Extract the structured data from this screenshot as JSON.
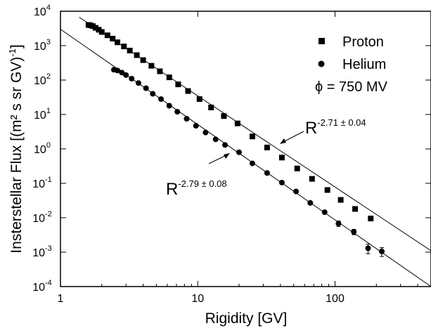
{
  "chart_data": {
    "type": "scatter",
    "xlabel": "Rigidity  [GV]",
    "ylabel": "Insterstellar Flux [(m² s sr GV)",
    "ylabel_sup": "-1",
    "ylabel_end": "]",
    "xscale": "log",
    "yscale": "log",
    "xlim": [
      1,
      500
    ],
    "ylim": [
      0.0001,
      10000
    ],
    "x_ticks": [
      {
        "value": 1,
        "label": "1"
      },
      {
        "value": 10,
        "label": "10"
      },
      {
        "value": 100,
        "label": "100"
      }
    ],
    "y_ticks": [
      {
        "value": 0.0001,
        "base": "10",
        "exp": "-4"
      },
      {
        "value": 0.001,
        "base": "10",
        "exp": "-3"
      },
      {
        "value": 0.01,
        "base": "10",
        "exp": "-2"
      },
      {
        "value": 0.1,
        "base": "10",
        "exp": "-1"
      },
      {
        "value": 1,
        "base": "10",
        "exp": "0"
      },
      {
        "value": 10,
        "base": "10",
        "exp": "1"
      },
      {
        "value": 100,
        "base": "10",
        "exp": "2"
      },
      {
        "value": 1000,
        "base": "10",
        "exp": "3"
      },
      {
        "value": 10000,
        "base": "10",
        "exp": "4"
      }
    ],
    "legend": {
      "position": "top-right",
      "entries": [
        "Proton",
        "Helium"
      ],
      "note": "ϕ = 750 MV"
    },
    "series": [
      {
        "name": "Proton",
        "marker": "square",
        "points": [
          {
            "x": 1.6,
            "y": 4000
          },
          {
            "x": 1.65,
            "y": 3900
          },
          {
            "x": 1.72,
            "y": 3700
          },
          {
            "x": 1.8,
            "y": 3300
          },
          {
            "x": 1.9,
            "y": 2900
          },
          {
            "x": 2.0,
            "y": 2500
          },
          {
            "x": 2.2,
            "y": 2000
          },
          {
            "x": 2.4,
            "y": 1600
          },
          {
            "x": 2.6,
            "y": 1250
          },
          {
            "x": 2.9,
            "y": 950
          },
          {
            "x": 3.2,
            "y": 720
          },
          {
            "x": 3.6,
            "y": 530
          },
          {
            "x": 4.0,
            "y": 380
          },
          {
            "x": 4.6,
            "y": 260
          },
          {
            "x": 5.3,
            "y": 180
          },
          {
            "x": 6.2,
            "y": 120
          },
          {
            "x": 7.2,
            "y": 75
          },
          {
            "x": 8.5,
            "y": 48
          },
          {
            "x": 10.3,
            "y": 28
          },
          {
            "x": 12.5,
            "y": 16
          },
          {
            "x": 15.5,
            "y": 9
          },
          {
            "x": 19.5,
            "y": 5.5
          },
          {
            "x": 25,
            "y": 2.3
          },
          {
            "x": 32,
            "y": 1.1
          },
          {
            "x": 41,
            "y": 0.56
          },
          {
            "x": 53,
            "y": 0.27
          },
          {
            "x": 68,
            "y": 0.135
          },
          {
            "x": 88,
            "y": 0.064
          },
          {
            "x": 110,
            "y": 0.033
          },
          {
            "x": 140,
            "y": 0.018
          },
          {
            "x": 182,
            "y": 0.0095
          }
        ],
        "fit": {
          "label_base": "R",
          "label_exp": "-2.71 ± 0.04",
          "index": -2.71,
          "from": {
            "x": 1.37,
            "y": 6700
          },
          "to": {
            "x": 500,
            "y": 0.0011
          }
        }
      },
      {
        "name": "Helium",
        "marker": "circle",
        "points": [
          {
            "x": 2.45,
            "y": 200
          },
          {
            "x": 2.6,
            "y": 190
          },
          {
            "x": 2.8,
            "y": 165
          },
          {
            "x": 3.0,
            "y": 140
          },
          {
            "x": 3.3,
            "y": 110
          },
          {
            "x": 3.7,
            "y": 82
          },
          {
            "x": 4.2,
            "y": 58
          },
          {
            "x": 4.7,
            "y": 40
          },
          {
            "x": 5.4,
            "y": 28
          },
          {
            "x": 6.2,
            "y": 18
          },
          {
            "x": 7.1,
            "y": 12
          },
          {
            "x": 8.3,
            "y": 7.5
          },
          {
            "x": 9.7,
            "y": 4.7
          },
          {
            "x": 11.4,
            "y": 3.0
          },
          {
            "x": 13.5,
            "y": 1.9
          },
          {
            "x": 15.8,
            "y": 1.3
          },
          {
            "x": 20,
            "y": 0.8
          },
          {
            "x": 25,
            "y": 0.38
          },
          {
            "x": 32,
            "y": 0.2
          },
          {
            "x": 41,
            "y": 0.105
          },
          {
            "x": 52,
            "y": 0.058
          },
          {
            "x": 66,
            "y": 0.027
          },
          {
            "x": 84,
            "y": 0.0145
          },
          {
            "x": 106,
            "y": 0.0068,
            "err": 0.0012
          },
          {
            "x": 137,
            "y": 0.0039,
            "err": 0.0007
          },
          {
            "x": 174,
            "y": 0.0013,
            "err": 0.0004
          },
          {
            "x": 219,
            "y": 0.00105,
            "err": 0.0003
          }
        ],
        "fit": {
          "label_base": "R",
          "label_exp": "-2.79 ± 0.08",
          "index": -2.79,
          "from": {
            "x": 1.0,
            "y": 3000
          },
          "to": {
            "x": 500,
            "y": 0.0001
          }
        }
      }
    ]
  }
}
